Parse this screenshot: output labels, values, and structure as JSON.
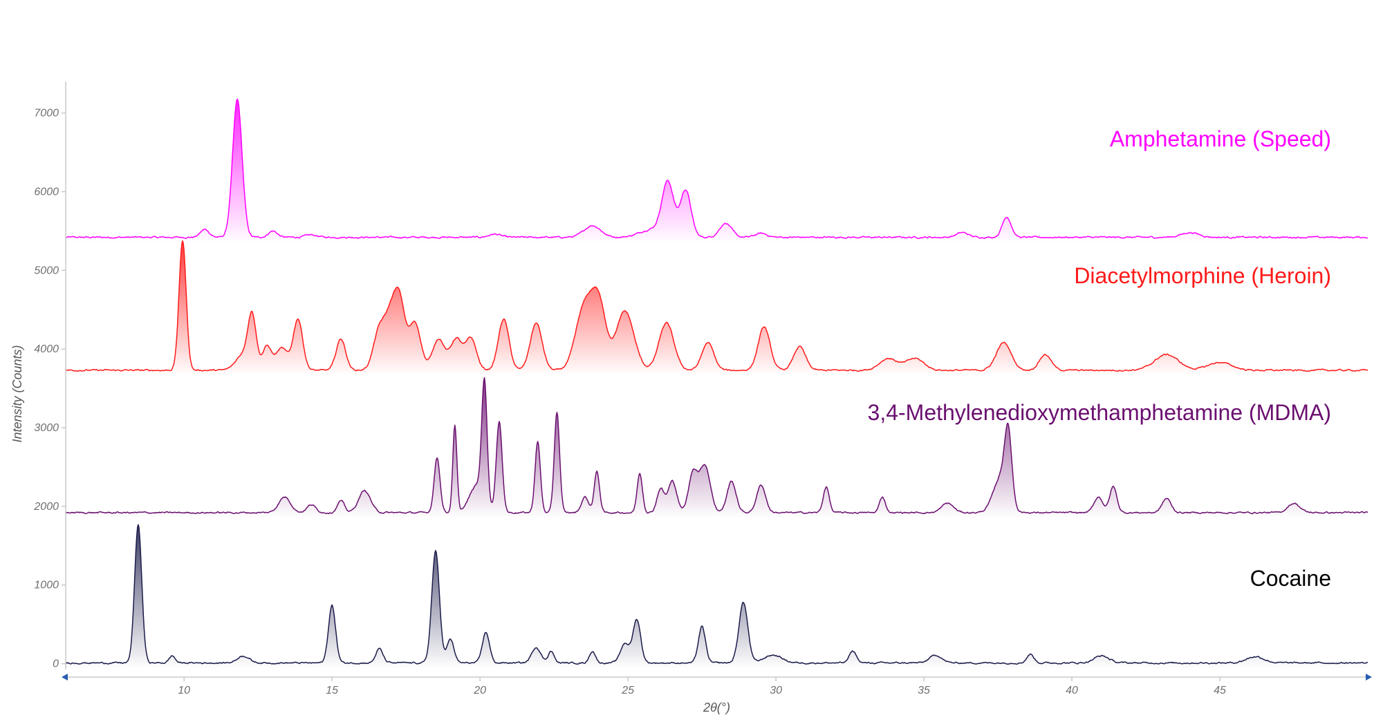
{
  "chart_data": {
    "type": "line",
    "title": "",
    "xlabel": "2θ(°)",
    "ylabel": "Intensity (Counts)",
    "xlim": [
      6,
      50
    ],
    "ylim": [
      -100,
      7400
    ],
    "x_ticks": [
      10,
      15,
      20,
      25,
      30,
      35,
      40,
      45
    ],
    "y_ticks": [
      0,
      1000,
      2000,
      3000,
      4000,
      5000,
      6000,
      7000
    ],
    "grid": false,
    "legend": "inline labels, right side",
    "series": [
      {
        "name": "Amphetamine (Speed)",
        "color": "#ff00ff",
        "fill": true,
        "baseline": 5420,
        "peaks": [
          [
            10.7,
            100,
            0.15
          ],
          [
            11.8,
            1750,
            0.16
          ],
          [
            13.0,
            80,
            0.15
          ],
          [
            14.3,
            30,
            0.2
          ],
          [
            20.5,
            40,
            0.2
          ],
          [
            23.8,
            150,
            0.28
          ],
          [
            26.35,
            680,
            0.2
          ],
          [
            26.95,
            600,
            0.18
          ],
          [
            25.8,
            100,
            0.4
          ],
          [
            28.3,
            180,
            0.2
          ],
          [
            29.5,
            50,
            0.2
          ],
          [
            36.3,
            60,
            0.2
          ],
          [
            37.8,
            260,
            0.15
          ],
          [
            44.0,
            60,
            0.3
          ]
        ]
      },
      {
        "name": "Diacetylmorphine (Heroin)",
        "color": "#ff1a1a",
        "fill": true,
        "baseline": 3730,
        "peaks": [
          [
            9.95,
            1650,
            0.12
          ],
          [
            12.0,
            200,
            0.25
          ],
          [
            12.3,
            650,
            0.14
          ],
          [
            12.8,
            300,
            0.15
          ],
          [
            13.3,
            280,
            0.2
          ],
          [
            13.85,
            650,
            0.16
          ],
          [
            15.3,
            400,
            0.16
          ],
          [
            16.6,
            500,
            0.2
          ],
          [
            17.0,
            650,
            0.2
          ],
          [
            17.3,
            750,
            0.18
          ],
          [
            17.8,
            600,
            0.2
          ],
          [
            18.6,
            400,
            0.2
          ],
          [
            19.2,
            400,
            0.2
          ],
          [
            19.7,
            400,
            0.18
          ],
          [
            20.8,
            650,
            0.18
          ],
          [
            21.9,
            600,
            0.2
          ],
          [
            23.5,
            750,
            0.28
          ],
          [
            24.0,
            850,
            0.25
          ],
          [
            24.9,
            750,
            0.3
          ],
          [
            26.3,
            600,
            0.25
          ],
          [
            27.7,
            350,
            0.2
          ],
          [
            29.6,
            550,
            0.2
          ],
          [
            30.8,
            300,
            0.2
          ],
          [
            33.8,
            150,
            0.3
          ],
          [
            34.7,
            150,
            0.3
          ],
          [
            37.7,
            350,
            0.25
          ],
          [
            39.1,
            200,
            0.2
          ],
          [
            43.2,
            200,
            0.4
          ],
          [
            45.0,
            100,
            0.4
          ]
        ]
      },
      {
        "name": "3,4-Methylenedioxymethamphetamine (MDMA)",
        "color": "#6a0f6f",
        "fill": true,
        "baseline": 1920,
        "peaks": [
          [
            13.4,
            200,
            0.2
          ],
          [
            14.3,
            100,
            0.15
          ],
          [
            15.3,
            150,
            0.12
          ],
          [
            16.1,
            280,
            0.2
          ],
          [
            18.55,
            700,
            0.1
          ],
          [
            19.15,
            1100,
            0.07
          ],
          [
            19.9,
            350,
            0.25
          ],
          [
            20.15,
            1500,
            0.09
          ],
          [
            20.65,
            1150,
            0.1
          ],
          [
            21.95,
            900,
            0.09
          ],
          [
            22.6,
            1280,
            0.09
          ],
          [
            23.55,
            200,
            0.12
          ],
          [
            23.95,
            520,
            0.09
          ],
          [
            25.4,
            500,
            0.09
          ],
          [
            26.1,
            300,
            0.12
          ],
          [
            26.5,
            400,
            0.15
          ],
          [
            27.2,
            500,
            0.15
          ],
          [
            27.6,
            600,
            0.18
          ],
          [
            28.5,
            400,
            0.15
          ],
          [
            29.5,
            350,
            0.15
          ],
          [
            31.7,
            330,
            0.1
          ],
          [
            33.6,
            200,
            0.1
          ],
          [
            35.8,
            120,
            0.2
          ],
          [
            37.6,
            450,
            0.25
          ],
          [
            37.85,
            850,
            0.12
          ],
          [
            40.9,
            200,
            0.15
          ],
          [
            41.4,
            330,
            0.12
          ],
          [
            43.2,
            180,
            0.15
          ],
          [
            47.5,
            120,
            0.2
          ]
        ]
      },
      {
        "name": "Cocaine",
        "color": "#1a1a4a",
        "fill": true,
        "baseline": 10,
        "peaks": [
          [
            8.45,
            1760,
            0.12
          ],
          [
            9.6,
            90,
            0.1
          ],
          [
            12.0,
            90,
            0.2
          ],
          [
            15.0,
            730,
            0.12
          ],
          [
            16.6,
            180,
            0.12
          ],
          [
            18.5,
            1420,
            0.13
          ],
          [
            19.0,
            300,
            0.12
          ],
          [
            20.2,
            390,
            0.12
          ],
          [
            21.9,
            200,
            0.15
          ],
          [
            22.4,
            150,
            0.1
          ],
          [
            23.8,
            150,
            0.1
          ],
          [
            24.9,
            250,
            0.15
          ],
          [
            25.3,
            550,
            0.13
          ],
          [
            27.5,
            460,
            0.12
          ],
          [
            28.9,
            770,
            0.15
          ],
          [
            29.9,
            100,
            0.3
          ],
          [
            32.6,
            150,
            0.12
          ],
          [
            35.4,
            100,
            0.2
          ],
          [
            38.6,
            110,
            0.12
          ],
          [
            41.0,
            90,
            0.25
          ],
          [
            46.2,
            80,
            0.3
          ]
        ]
      }
    ]
  }
}
